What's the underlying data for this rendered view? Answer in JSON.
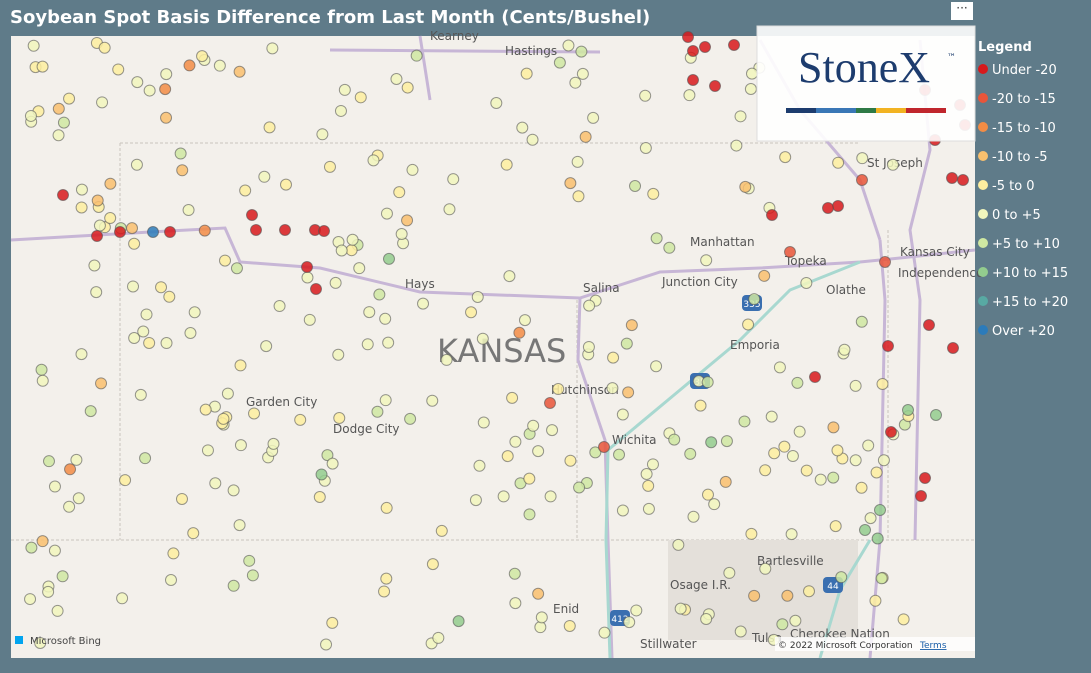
{
  "header": {
    "title": "Soybean Spot Basis Difference from Last Month (Cents/Bushel)",
    "menu": "···"
  },
  "legend": {
    "title": "Legend",
    "items": [
      {
        "label": "Under -20",
        "color": "#d7191c"
      },
      {
        "label": "-20 to -15",
        "color": "#e8553a"
      },
      {
        "label": "-15 to -10",
        "color": "#f28c45"
      },
      {
        "label": "-10 to -5",
        "color": "#f9c06e"
      },
      {
        "label": "-5 to 0",
        "color": "#fdeea0"
      },
      {
        "label": "0 to +5",
        "color": "#f1f6bd"
      },
      {
        "label": "+5 to +10",
        "color": "#cfe8a2"
      },
      {
        "label": "+10 to +15",
        "color": "#93cc8e"
      },
      {
        "label": "+15 to +20",
        "color": "#58a9a3"
      },
      {
        "label": "Over +20",
        "color": "#2b7bba"
      }
    ]
  },
  "logo": {
    "text": "StoneX",
    "mark": "™"
  },
  "map": {
    "labels": [
      "Kearney",
      "Hastings",
      "St Joseph",
      "Manhattan",
      "Kansas City",
      "Independence",
      "Topeka",
      "Junction City",
      "Hays",
      "Salina",
      "Olathe",
      "Emporia",
      "KANSAS",
      "Hutchinson",
      "Garden City",
      "Dodge City",
      "Wichita",
      "Bartlesville",
      "Osage I.R.",
      "Enid",
      "Stillwater",
      "Tulsa",
      "Cherokee Nation"
    ],
    "shields": [
      "335",
      "35",
      "44",
      "412"
    ],
    "attribution": {
      "brand": "Microsoft Bing",
      "copyright": "© 2022 Microsoft Corporation",
      "terms": "Terms"
    }
  }
}
